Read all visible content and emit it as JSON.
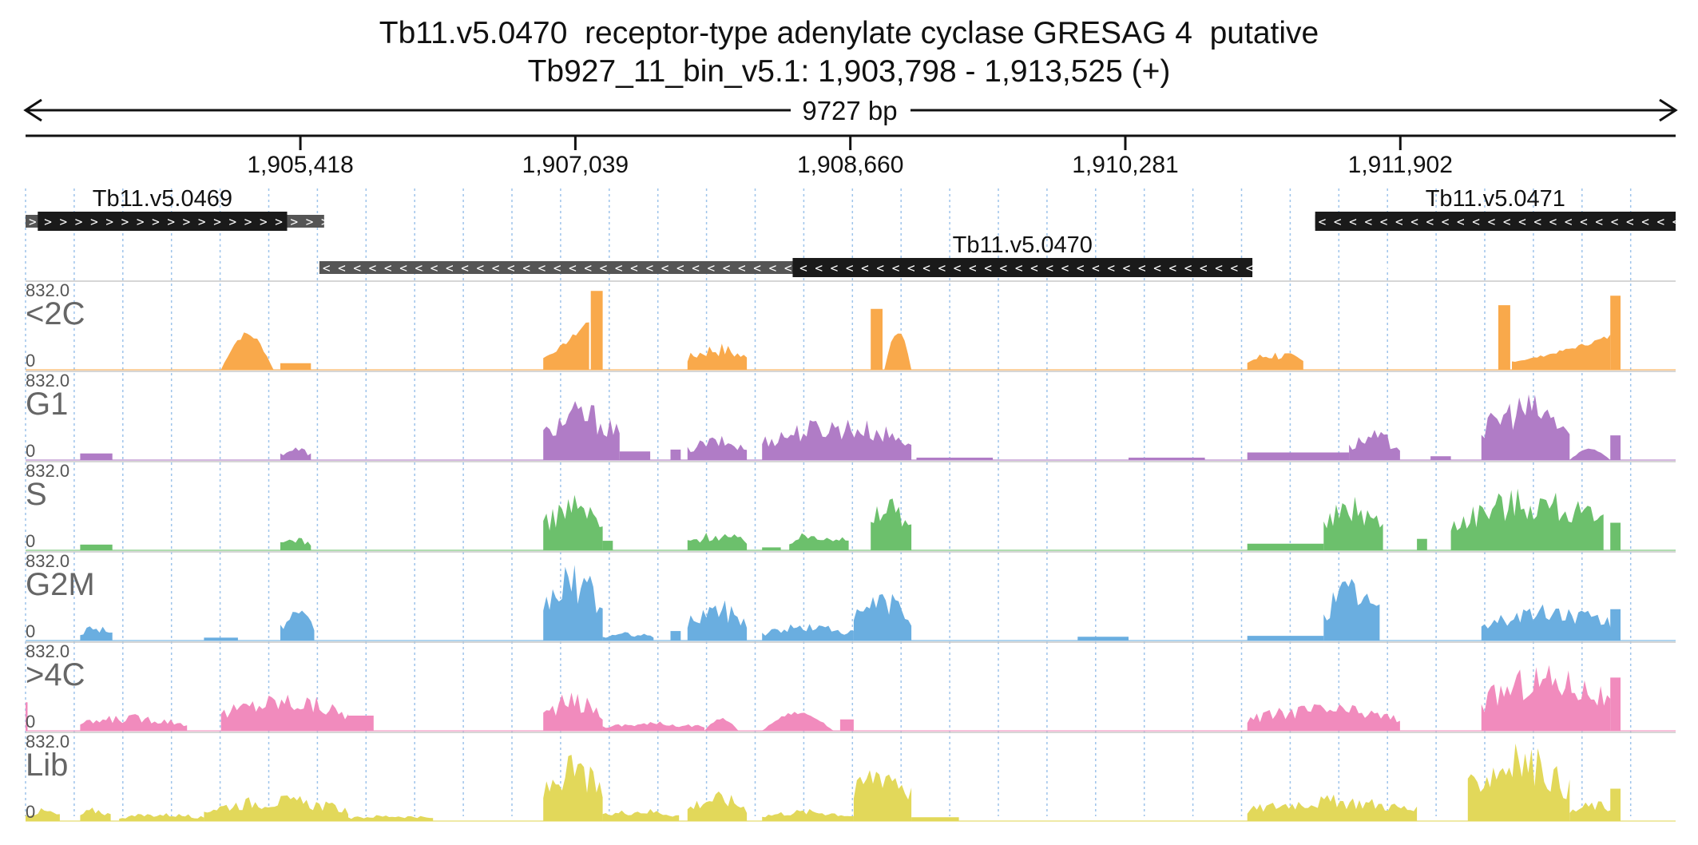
{
  "title": {
    "line1": "Tb11.v5.0470  receptor-type adenylate cyclase GRESAG 4  putative",
    "line2": "Tb927_11_bin_v5.1: 1,903,798 - 1,913,525 (+)"
  },
  "region": {
    "start": 1903798,
    "end": 1913525,
    "span_label": "9727 bp"
  },
  "colors": {
    "<2C": "#f9a94b",
    "G1": "#b07cc6",
    "S": "#6cc06c",
    "G2M": "#6aaee0",
    ">4C": "#f18bbd",
    "Lib": "#e2d85a",
    "gene_dark": "#1a1a1a",
    "gene_light": "#555555",
    "grid": "#9ec4ea"
  },
  "chart_data": {
    "type": "area",
    "x_axis": {
      "ticks": [
        1905418,
        1907039,
        1908660,
        1910281,
        1911902
      ],
      "tick_labels": [
        "1,905,418",
        "1,907,039",
        "1,908,660",
        "1,910,281",
        "1,911,902"
      ]
    },
    "genes": [
      {
        "name": "Tb11.v5.0469",
        "strand": "+",
        "row": 0,
        "utr": [
          1903798,
          1905558
        ],
        "cds": [
          1903870,
          1905340
        ]
      },
      {
        "name": "Tb11.v5.0470",
        "strand": "-",
        "row": 1,
        "utr": [
          1905530,
          1911030
        ],
        "cds": [
          1908320,
          1911030
        ]
      },
      {
        "name": "Tb11.v5.0471",
        "strand": "-",
        "row": 0,
        "utr": [
          1911400,
          1913525
        ],
        "cds": [
          1911400,
          1913525
        ]
      }
    ],
    "tracks": [
      {
        "name": "<2C",
        "max_label": "832.0",
        "min_label": "0",
        "ylim": [
          0,
          832
        ],
        "peaks": [
          {
            "from": 1904950,
            "to": 1905260,
            "shape": "hump",
            "h": 410
          },
          {
            "from": 1905300,
            "to": 1905480,
            "shape": "flat",
            "h": 70
          },
          {
            "from": 1906850,
            "to": 1907120,
            "shape": "rise",
            "h": 560
          },
          {
            "from": 1907130,
            "to": 1907200,
            "shape": "flat",
            "h": 830
          },
          {
            "from": 1907700,
            "to": 1908050,
            "shape": "bumpy",
            "h": 290
          },
          {
            "from": 1908780,
            "to": 1908850,
            "shape": "flat",
            "h": 640
          },
          {
            "from": 1908860,
            "to": 1909020,
            "shape": "hump",
            "h": 460
          },
          {
            "from": 1911000,
            "to": 1911330,
            "shape": "bumpy",
            "h": 210
          },
          {
            "from": 1912480,
            "to": 1912550,
            "shape": "flat",
            "h": 680
          },
          {
            "from": 1912560,
            "to": 1913140,
            "shape": "rise",
            "h": 380
          },
          {
            "from": 1913140,
            "to": 1913200,
            "shape": "flat",
            "h": 780
          }
        ]
      },
      {
        "name": "G1",
        "max_label": "832.0",
        "min_label": "0",
        "ylim": [
          0,
          832
        ],
        "peaks": [
          {
            "from": 1904120,
            "to": 1904310,
            "shape": "flat",
            "h": 70
          },
          {
            "from": 1905300,
            "to": 1905480,
            "shape": "bumpy",
            "h": 150
          },
          {
            "from": 1906850,
            "to": 1907300,
            "shape": "bumpy",
            "h": 640
          },
          {
            "from": 1907300,
            "to": 1907480,
            "shape": "flat",
            "h": 90
          },
          {
            "from": 1907600,
            "to": 1907660,
            "shape": "flat",
            "h": 110
          },
          {
            "from": 1907700,
            "to": 1908050,
            "shape": "bumpy",
            "h": 260
          },
          {
            "from": 1908140,
            "to": 1909020,
            "shape": "bumpy",
            "h": 470
          },
          {
            "from": 1909050,
            "to": 1909500,
            "shape": "flat",
            "h": 25
          },
          {
            "from": 1910300,
            "to": 1910750,
            "shape": "flat",
            "h": 25
          },
          {
            "from": 1911000,
            "to": 1911600,
            "shape": "flat",
            "h": 80
          },
          {
            "from": 1911600,
            "to": 1911900,
            "shape": "bumpy",
            "h": 320
          },
          {
            "from": 1912080,
            "to": 1912200,
            "shape": "flat",
            "h": 40
          },
          {
            "from": 1912380,
            "to": 1912900,
            "shape": "bumpy",
            "h": 720
          },
          {
            "from": 1912900,
            "to": 1913140,
            "shape": "hump",
            "h": 130
          },
          {
            "from": 1913140,
            "to": 1913200,
            "shape": "flat",
            "h": 260
          }
        ]
      },
      {
        "name": "S",
        "max_label": "832.0",
        "min_label": "0",
        "ylim": [
          0,
          832
        ],
        "peaks": [
          {
            "from": 1904120,
            "to": 1904310,
            "shape": "flat",
            "h": 60
          },
          {
            "from": 1905300,
            "to": 1905480,
            "shape": "bumpy",
            "h": 160
          },
          {
            "from": 1906850,
            "to": 1907200,
            "shape": "bumpy",
            "h": 620
          },
          {
            "from": 1907200,
            "to": 1907260,
            "shape": "flat",
            "h": 100
          },
          {
            "from": 1907700,
            "to": 1908050,
            "shape": "bumpy",
            "h": 210
          },
          {
            "from": 1908140,
            "to": 1908250,
            "shape": "flat",
            "h": 30
          },
          {
            "from": 1908300,
            "to": 1908650,
            "shape": "bumpy",
            "h": 220
          },
          {
            "from": 1908780,
            "to": 1909020,
            "shape": "bumpy",
            "h": 640
          },
          {
            "from": 1911000,
            "to": 1911450,
            "shape": "flat",
            "h": 70
          },
          {
            "from": 1911450,
            "to": 1911800,
            "shape": "bumpy",
            "h": 600
          },
          {
            "from": 1912000,
            "to": 1912060,
            "shape": "flat",
            "h": 120
          },
          {
            "from": 1912200,
            "to": 1913100,
            "shape": "bumpy",
            "h": 690
          },
          {
            "from": 1913140,
            "to": 1913200,
            "shape": "flat",
            "h": 290
          }
        ]
      },
      {
        "name": "G2M",
        "max_label": "832.0",
        "min_label": "0",
        "ylim": [
          0,
          832
        ],
        "peaks": [
          {
            "from": 1904120,
            "to": 1904310,
            "shape": "bumpy",
            "h": 190
          },
          {
            "from": 1904850,
            "to": 1905050,
            "shape": "flat",
            "h": 30
          },
          {
            "from": 1905300,
            "to": 1905500,
            "shape": "bumpy",
            "h": 330
          },
          {
            "from": 1906850,
            "to": 1907200,
            "shape": "bumpy",
            "h": 830
          },
          {
            "from": 1907200,
            "to": 1907500,
            "shape": "bumpy",
            "h": 90
          },
          {
            "from": 1907600,
            "to": 1907660,
            "shape": "flat",
            "h": 100
          },
          {
            "from": 1907700,
            "to": 1908050,
            "shape": "bumpy",
            "h": 440
          },
          {
            "from": 1908140,
            "to": 1908680,
            "shape": "bumpy",
            "h": 190
          },
          {
            "from": 1908680,
            "to": 1909020,
            "shape": "bumpy",
            "h": 550
          },
          {
            "from": 1910000,
            "to": 1910300,
            "shape": "flat",
            "h": 40
          },
          {
            "from": 1911000,
            "to": 1911450,
            "shape": "flat",
            "h": 50
          },
          {
            "from": 1911450,
            "to": 1911780,
            "shape": "bumpy",
            "h": 700
          },
          {
            "from": 1912380,
            "to": 1913180,
            "shape": "bumpy",
            "h": 400
          },
          {
            "from": 1913140,
            "to": 1913200,
            "shape": "flat",
            "h": 330
          }
        ]
      },
      {
        "name": ">4C",
        "max_label": "832.0",
        "min_label": "0",
        "ylim": [
          0,
          832
        ],
        "peaks": [
          {
            "from": 1903798,
            "to": 1903810,
            "shape": "flat",
            "h": 300
          },
          {
            "from": 1904120,
            "to": 1904750,
            "shape": "bumpy",
            "h": 180
          },
          {
            "from": 1904950,
            "to": 1905700,
            "shape": "bumpy",
            "h": 420
          },
          {
            "from": 1905700,
            "to": 1905850,
            "shape": "flat",
            "h": 160
          },
          {
            "from": 1906850,
            "to": 1907200,
            "shape": "bumpy",
            "h": 410
          },
          {
            "from": 1907200,
            "to": 1907800,
            "shape": "bumpy",
            "h": 100
          },
          {
            "from": 1907800,
            "to": 1908000,
            "shape": "hump",
            "h": 140
          },
          {
            "from": 1908140,
            "to": 1908560,
            "shape": "hump",
            "h": 210
          },
          {
            "from": 1908600,
            "to": 1908680,
            "shape": "flat",
            "h": 120
          },
          {
            "from": 1911000,
            "to": 1911900,
            "shape": "bumpy",
            "h": 300
          },
          {
            "from": 1912380,
            "to": 1913140,
            "shape": "bumpy",
            "h": 730
          },
          {
            "from": 1913140,
            "to": 1913200,
            "shape": "flat",
            "h": 560
          }
        ]
      },
      {
        "name": "Lib",
        "max_label": "832.0",
        "min_label": "0",
        "ylim": [
          0,
          832
        ],
        "peaks": [
          {
            "from": 1903798,
            "to": 1904000,
            "shape": "bumpy",
            "h": 140
          },
          {
            "from": 1904120,
            "to": 1904300,
            "shape": "bumpy",
            "h": 150
          },
          {
            "from": 1904350,
            "to": 1904850,
            "shape": "bumpy",
            "h": 90
          },
          {
            "from": 1904850,
            "to": 1905700,
            "shape": "bumpy",
            "h": 280
          },
          {
            "from": 1905700,
            "to": 1906200,
            "shape": "bumpy",
            "h": 70
          },
          {
            "from": 1906850,
            "to": 1907200,
            "shape": "bumpy",
            "h": 700
          },
          {
            "from": 1907200,
            "to": 1907650,
            "shape": "bumpy",
            "h": 140
          },
          {
            "from": 1907700,
            "to": 1908050,
            "shape": "bumpy",
            "h": 320
          },
          {
            "from": 1908140,
            "to": 1908680,
            "shape": "bumpy",
            "h": 130
          },
          {
            "from": 1908680,
            "to": 1909020,
            "shape": "bumpy",
            "h": 700
          },
          {
            "from": 1909020,
            "to": 1909300,
            "shape": "flat",
            "h": 40
          },
          {
            "from": 1911000,
            "to": 1912000,
            "shape": "bumpy",
            "h": 280
          },
          {
            "from": 1912300,
            "to": 1912900,
            "shape": "bumpy",
            "h": 830
          },
          {
            "from": 1912900,
            "to": 1913200,
            "shape": "bumpy",
            "h": 220
          },
          {
            "from": 1913140,
            "to": 1913200,
            "shape": "flat",
            "h": 340
          }
        ]
      }
    ]
  }
}
